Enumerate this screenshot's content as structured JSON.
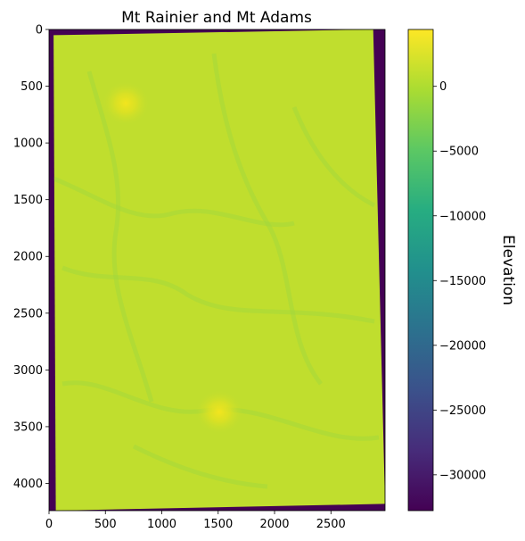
{
  "chart_data": {
    "type": "heatmap",
    "title": "Mt Rainier and Mt Adams",
    "xlabel": "",
    "ylabel": "",
    "xlim": [
      0,
      2980
    ],
    "ylim": [
      4240,
      0
    ],
    "x_ticks": [
      0,
      500,
      1000,
      1500,
      2000,
      2500
    ],
    "y_ticks": [
      0,
      500,
      1000,
      1500,
      2000,
      2500,
      3000,
      3500,
      4000
    ],
    "colormap": "viridis",
    "colorbar": {
      "label": "Elevation",
      "range": [
        -32768,
        4392
      ],
      "ticks": [
        0,
        -5000,
        -10000,
        -15000,
        -20000,
        -25000,
        -30000
      ],
      "tick_labels": [
        "0",
        "−5000",
        "−10000",
        "−15000",
        "−20000",
        "−25000",
        "−30000"
      ]
    },
    "nodata_value": -32768,
    "valid_region_corners": [
      [
        40,
        50
      ],
      [
        2875,
        0
      ],
      [
        2980,
        4180
      ],
      [
        60,
        4240
      ]
    ],
    "peaks": [
      {
        "name": "Mt Rainier",
        "x": 680,
        "y": 650,
        "elevation": 4392
      },
      {
        "name": "Mt Adams",
        "x": 1510,
        "y": 3370,
        "elevation": 3743
      }
    ],
    "grid": false
  }
}
